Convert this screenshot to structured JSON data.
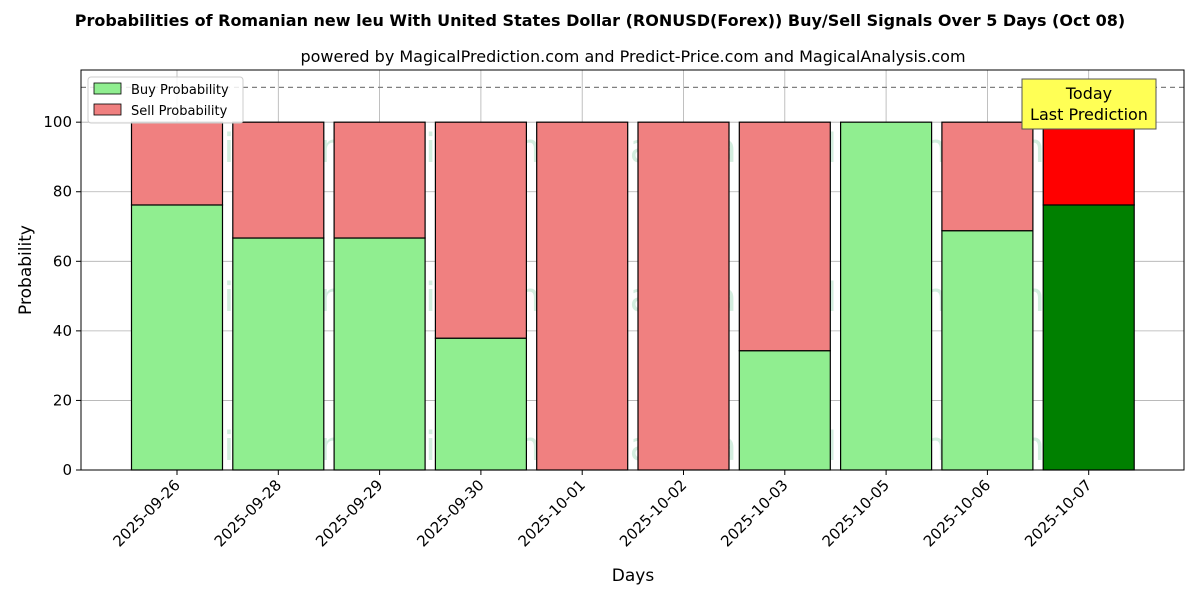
{
  "chart_data": {
    "type": "bar",
    "stacked": true,
    "title": "Probabilities of Romanian new leu With United States Dollar (RONUSD(Forex)) Buy/Sell Signals Over 5 Days (Oct 08)",
    "subtitle": "powered by MagicalPrediction.com and Predict-Price.com and MagicalAnalysis.com",
    "xlabel": "Days",
    "ylabel": "Probability",
    "ylim": [
      0,
      115
    ],
    "yticks": [
      0,
      20,
      40,
      60,
      80,
      100
    ],
    "grid": true,
    "legend_position": "top-left",
    "reference_line": 110,
    "categories": [
      "2025-09-26",
      "2025-09-28",
      "2025-09-29",
      "2025-09-30",
      "2025-10-01",
      "2025-10-02",
      "2025-10-03",
      "2025-10-05",
      "2025-10-06",
      "2025-10-07"
    ],
    "series": [
      {
        "name": "Buy Probability",
        "values": [
          76.2,
          66.7,
          66.7,
          37.9,
          0,
          0,
          34.3,
          100,
          68.8,
          76.2
        ]
      },
      {
        "name": "Sell Probability",
        "values": [
          23.8,
          33.3,
          33.3,
          62.1,
          100,
          100,
          65.7,
          0,
          31.2,
          23.8
        ]
      }
    ],
    "annotation": {
      "line1": "Today",
      "line2": "Last Prediction"
    },
    "watermarks": [
      "MagicalAnalysis.com",
      "MagicalPrediction.com"
    ]
  },
  "colors": {
    "buy": "#90ee90",
    "sell": "#f08080",
    "buy_highlight": "#008000",
    "sell_highlight": "#ff0000",
    "annotation_bg": "#ffff55"
  }
}
